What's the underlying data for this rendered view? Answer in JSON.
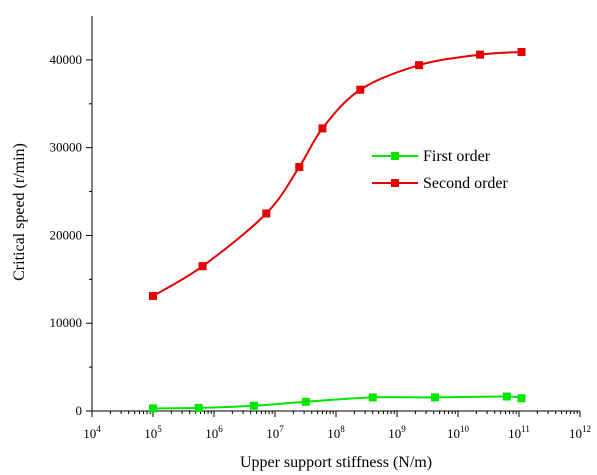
{
  "chart_data": {
    "type": "line",
    "title": "",
    "xlabel": "Upper support stiffness (N/m)",
    "ylabel": "Critical speed (r/min)",
    "x_scale": "log",
    "xlim": [
      10000,
      1000000000000
    ],
    "ylim": [
      0,
      45000
    ],
    "x_ticks": [
      {
        "base": "10",
        "exp": "4",
        "value": 10000
      },
      {
        "base": "10",
        "exp": "5",
        "value": 100000
      },
      {
        "base": "10",
        "exp": "6",
        "value": 1000000
      },
      {
        "base": "10",
        "exp": "7",
        "value": 10000000
      },
      {
        "base": "10",
        "exp": "8",
        "value": 100000000
      },
      {
        "base": "10",
        "exp": "9",
        "value": 1000000000
      },
      {
        "base": "10",
        "exp": "10",
        "value": 10000000000
      },
      {
        "base": "10",
        "exp": "11",
        "value": 100000000000
      },
      {
        "base": "10",
        "exp": "12",
        "value": 1000000000000
      }
    ],
    "y_ticks": [
      "0",
      "10000",
      "20000",
      "30000",
      "40000"
    ],
    "grid": false,
    "legend_position": "right-middle",
    "series": [
      {
        "name": "First order",
        "color": "#00e600",
        "marker": "square",
        "points": [
          {
            "x": 100000,
            "y": 300
          },
          {
            "x": 560000,
            "y": 350
          },
          {
            "x": 4500000,
            "y": 600
          },
          {
            "x": 32000000,
            "y": 1050
          },
          {
            "x": 400000000,
            "y": 1550
          },
          {
            "x": 4200000000,
            "y": 1550
          },
          {
            "x": 63000000000,
            "y": 1650
          },
          {
            "x": 110000000000,
            "y": 1450
          }
        ]
      },
      {
        "name": "Second order",
        "color": "#e60000",
        "marker": "square",
        "points": [
          {
            "x": 100000,
            "y": 13100
          },
          {
            "x": 650000,
            "y": 16500
          },
          {
            "x": 7200000,
            "y": 22500
          },
          {
            "x": 25000000,
            "y": 27800
          },
          {
            "x": 60000000,
            "y": 32200
          },
          {
            "x": 250000000,
            "y": 36600
          },
          {
            "x": 2300000000,
            "y": 39400
          },
          {
            "x": 23000000000,
            "y": 40600
          },
          {
            "x": 110000000000,
            "y": 40900
          }
        ]
      }
    ]
  }
}
